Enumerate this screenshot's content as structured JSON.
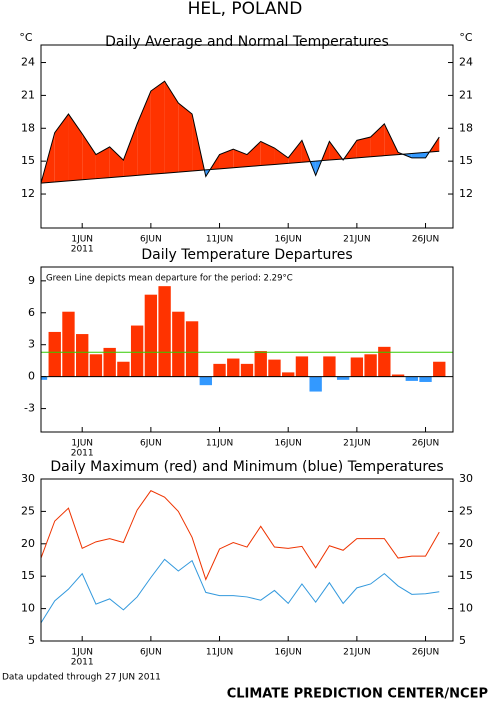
{
  "header": {
    "title": "HEL, POLAND"
  },
  "footer": {
    "updated": "Data updated through 27 JUN 2011",
    "credit": "CLIMATE PREDICTION CENTER/NCEP"
  },
  "chart_data": [
    {
      "type": "area",
      "title": "Daily Average and Normal Temperatures",
      "y_label": "°C",
      "y2_label": "°C",
      "x": [
        "2011-05-29",
        "2011-05-30",
        "2011-05-31",
        "2011-06-01",
        "2011-06-02",
        "2011-06-03",
        "2011-06-04",
        "2011-06-05",
        "2011-06-06",
        "2011-06-07",
        "2011-06-08",
        "2011-06-09",
        "2011-06-10",
        "2011-06-11",
        "2011-06-12",
        "2011-06-13",
        "2011-06-14",
        "2011-06-15",
        "2011-06-16",
        "2011-06-17",
        "2011-06-18",
        "2011-06-19",
        "2011-06-20",
        "2011-06-21",
        "2011-06-22",
        "2011-06-23",
        "2011-06-24",
        "2011-06-25",
        "2011-06-26",
        "2011-06-27"
      ],
      "series": [
        {
          "values": [
            13.0,
            17.6,
            19.3,
            17.5,
            15.6,
            16.3,
            15.1,
            18.4,
            21.4,
            22.3,
            20.3,
            19.3,
            13.6,
            15.6,
            16.1,
            15.6,
            16.8,
            16.2,
            15.3,
            16.9,
            13.7,
            16.8,
            15.1,
            16.9,
            17.2,
            18.4,
            15.8,
            15.3,
            15.3,
            17.2
          ],
          "color": "#000000"
        },
        {
          "values": [
            13.0,
            13.1,
            13.2,
            13.3,
            13.4,
            13.5,
            13.6,
            13.7,
            13.8,
            13.9,
            14.0,
            14.1,
            14.2,
            14.3,
            14.4,
            14.5,
            14.6,
            14.7,
            14.8,
            14.9,
            15.0,
            15.1,
            15.2,
            15.3,
            15.4,
            15.5,
            15.6,
            15.7,
            15.8,
            15.9
          ],
          "color": "#000000"
        }
      ],
      "above_color": "#ff3300",
      "below_color": "#3399ff",
      "xlim": [
        "2011-05-29",
        "2011-06-28"
      ],
      "xticks": [
        {
          "value": "2011-06-01",
          "label": "1JUN"
        },
        {
          "value": "2011-06-06",
          "label": "6JUN"
        },
        {
          "value": "2011-06-11",
          "label": "11JUN"
        },
        {
          "value": "2011-06-16",
          "label": "16JUN"
        },
        {
          "value": "2011-06-21",
          "label": "21JUN"
        },
        {
          "value": "2011-06-26",
          "label": "26JUN"
        }
      ],
      "year_label": "2011",
      "ylim": [
        8.9,
        25.6
      ],
      "yticks": [
        12,
        15,
        18,
        21,
        24
      ],
      "y2lim": [
        8.9,
        25.6
      ],
      "y2ticks": [
        12,
        15,
        18,
        21,
        24
      ]
    },
    {
      "type": "bar",
      "title": "Daily Temperature Departures",
      "annotation": "Green Line depicts mean departure for the period: 2.29°C",
      "x": [
        "2011-05-29",
        "2011-05-30",
        "2011-05-31",
        "2011-06-01",
        "2011-06-02",
        "2011-06-03",
        "2011-06-04",
        "2011-06-05",
        "2011-06-06",
        "2011-06-07",
        "2011-06-08",
        "2011-06-09",
        "2011-06-10",
        "2011-06-11",
        "2011-06-12",
        "2011-06-13",
        "2011-06-14",
        "2011-06-15",
        "2011-06-16",
        "2011-06-17",
        "2011-06-18",
        "2011-06-19",
        "2011-06-20",
        "2011-06-21",
        "2011-06-22",
        "2011-06-23",
        "2011-06-24",
        "2011-06-25",
        "2011-06-26",
        "2011-06-27"
      ],
      "values": [
        -0.3,
        4.2,
        6.1,
        4.0,
        2.1,
        2.7,
        1.4,
        4.8,
        7.7,
        8.5,
        6.1,
        5.2,
        -0.8,
        1.2,
        1.7,
        1.2,
        2.4,
        1.6,
        0.4,
        1.9,
        -1.4,
        1.9,
        -0.3,
        1.8,
        2.1,
        2.8,
        0.2,
        -0.4,
        -0.5,
        1.4
      ],
      "positive_color": "#ff3300",
      "negative_color": "#3399ff",
      "mean": 2.29,
      "mean_color": "#33cc00",
      "xlim": [
        "2011-05-29",
        "2011-06-28"
      ],
      "xticks": [
        {
          "value": "2011-06-01",
          "label": "1JUN"
        },
        {
          "value": "2011-06-06",
          "label": "6JUN"
        },
        {
          "value": "2011-06-11",
          "label": "11JUN"
        },
        {
          "value": "2011-06-16",
          "label": "16JUN"
        },
        {
          "value": "2011-06-21",
          "label": "21JUN"
        },
        {
          "value": "2011-06-26",
          "label": "26JUN"
        }
      ],
      "year_label": "2011",
      "ylim": [
        -5.2,
        10.3
      ],
      "yticks": [
        -3,
        0,
        3,
        6,
        9
      ]
    },
    {
      "type": "line",
      "title": "Daily Maximum (red) and Minimum (blue) Temperatures",
      "x": [
        "2011-05-29",
        "2011-05-30",
        "2011-05-31",
        "2011-06-01",
        "2011-06-02",
        "2011-06-03",
        "2011-06-04",
        "2011-06-05",
        "2011-06-06",
        "2011-06-07",
        "2011-06-08",
        "2011-06-09",
        "2011-06-10",
        "2011-06-11",
        "2011-06-12",
        "2011-06-13",
        "2011-06-14",
        "2011-06-15",
        "2011-06-16",
        "2011-06-17",
        "2011-06-18",
        "2011-06-19",
        "2011-06-20",
        "2011-06-21",
        "2011-06-22",
        "2011-06-23",
        "2011-06-24",
        "2011-06-25",
        "2011-06-26",
        "2011-06-27"
      ],
      "series": [
        {
          "values": [
            17.8,
            23.5,
            25.5,
            19.3,
            20.3,
            20.8,
            20.2,
            25.2,
            28.2,
            27.2,
            25.0,
            21.0,
            14.5,
            19.2,
            20.2,
            19.5,
            22.7,
            19.5,
            19.3,
            19.6,
            16.3,
            19.7,
            19.0,
            20.8,
            20.8,
            20.8,
            17.8,
            18.1,
            18.1,
            21.8
          ],
          "color": "#ee3300"
        },
        {
          "values": [
            7.8,
            11.2,
            13.0,
            15.4,
            10.7,
            11.5,
            9.8,
            11.8,
            14.8,
            17.6,
            15.8,
            17.4,
            12.5,
            12.0,
            12.0,
            11.8,
            11.3,
            12.8,
            10.8,
            13.8,
            11.0,
            14.0,
            10.8,
            13.2,
            13.8,
            15.4,
            13.5,
            12.2,
            12.3,
            12.6
          ],
          "color": "#3399dd"
        }
      ],
      "xlim": [
        "2011-05-29",
        "2011-06-28"
      ],
      "xticks": [
        {
          "value": "2011-06-01",
          "label": "1JUN"
        },
        {
          "value": "2011-06-06",
          "label": "6JUN"
        },
        {
          "value": "2011-06-11",
          "label": "11JUN"
        },
        {
          "value": "2011-06-16",
          "label": "16JUN"
        },
        {
          "value": "2011-06-21",
          "label": "21JUN"
        },
        {
          "value": "2011-06-26",
          "label": "26JUN"
        }
      ],
      "year_label": "2011",
      "ylim": [
        5,
        30
      ],
      "yticks": [
        5,
        10,
        15,
        20,
        25,
        30
      ],
      "y2lim": [
        5,
        30
      ],
      "y2ticks": [
        5,
        10,
        15,
        20,
        25,
        30
      ]
    }
  ]
}
